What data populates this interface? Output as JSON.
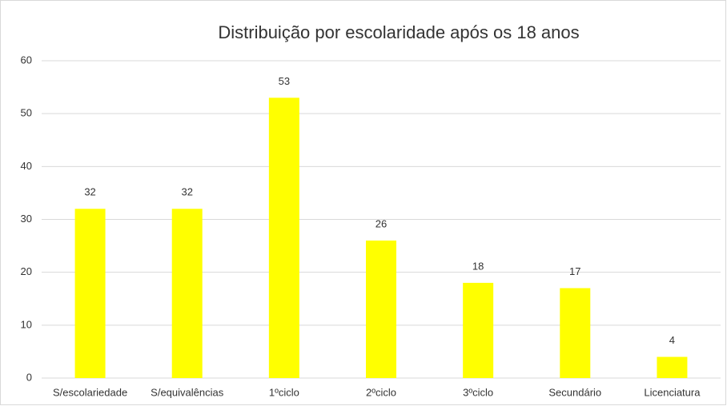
{
  "chart_data": {
    "type": "bar",
    "title": "Distribuição por escolaridade após os 18 anos",
    "categories": [
      "S/escolariedade",
      "S/equivalências",
      "1ºciclo",
      "2ºciclo",
      "3ºciclo",
      "Secundário",
      "Licenciatura"
    ],
    "values": [
      32,
      32,
      53,
      26,
      18,
      17,
      4
    ],
    "color": "#ffff00",
    "ylim": [
      0,
      60
    ],
    "yticks": [
      0,
      10,
      20,
      30,
      40,
      50,
      60
    ],
    "grid": true
  }
}
